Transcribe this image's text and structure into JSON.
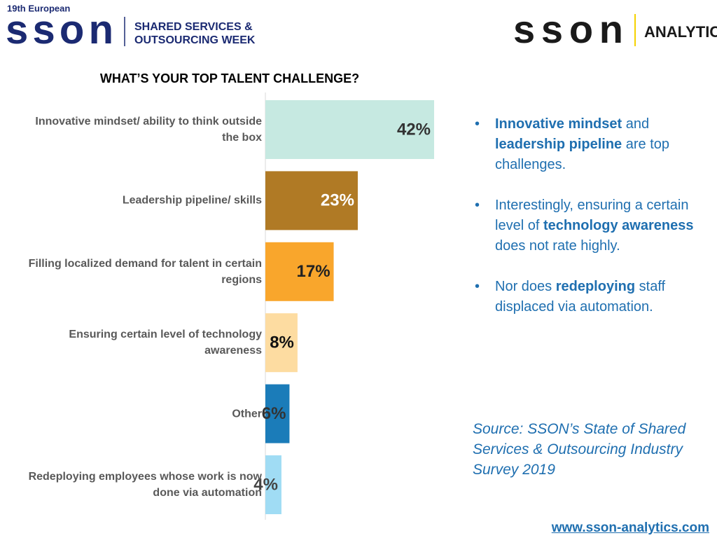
{
  "header": {
    "left_logo": {
      "tagline": "19th European",
      "brand": "sson",
      "lines": [
        "SHARED SERVICES &",
        "OUTSOURCING WEEK"
      ]
    },
    "right_logo": {
      "brand": "sson",
      "label": "ANALYTICS"
    }
  },
  "chart_data": {
    "type": "bar",
    "orientation": "horizontal",
    "title": "WHAT’S YOUR TOP TALENT CHALLENGE?",
    "categories": [
      "Innovative mindset/ ability to think outside the box",
      "Leadership pipeline/ skills",
      "Filling localized demand for talent in certain regions",
      "Ensuring certain level of technology awareness",
      "Other",
      "Redeploying employees whose work is now done via automation"
    ],
    "values": [
      42,
      23,
      17,
      8,
      6,
      4
    ],
    "value_labels": [
      "42%",
      "23%",
      "17%",
      "8%",
      "6%",
      "4%"
    ],
    "colors": [
      "#c6e9e1",
      "#b07a25",
      "#f9a62c",
      "#fddca1",
      "#1b7cb9",
      "#a0dcf4"
    ],
    "label_colors": [
      "#333333",
      "#ffffff",
      "#222222",
      "#111111",
      "#333333",
      "#444444"
    ]
  },
  "bullets": [
    [
      {
        "text": "Innovative mindset",
        "bold": true
      },
      {
        "text": " and ",
        "bold": false
      },
      {
        "text": "leadership pipeline",
        "bold": true
      },
      {
        "text": " are top challenges.",
        "bold": false
      }
    ],
    [
      {
        "text": "Interestingly, ensuring a certain level of ",
        "bold": false
      },
      {
        "text": "technology awareness",
        "bold": true
      },
      {
        "text": " does not rate highly.",
        "bold": false
      }
    ],
    [
      {
        "text": "Nor does ",
        "bold": false
      },
      {
        "text": "redeploying",
        "bold": true
      },
      {
        "text": " staff displaced via automation.",
        "bold": false
      }
    ]
  ],
  "source": "Source: SSON’s State of Shared Services & Outsourcing Industry Survey 2019",
  "footer_url": "www.sson-analytics.com"
}
